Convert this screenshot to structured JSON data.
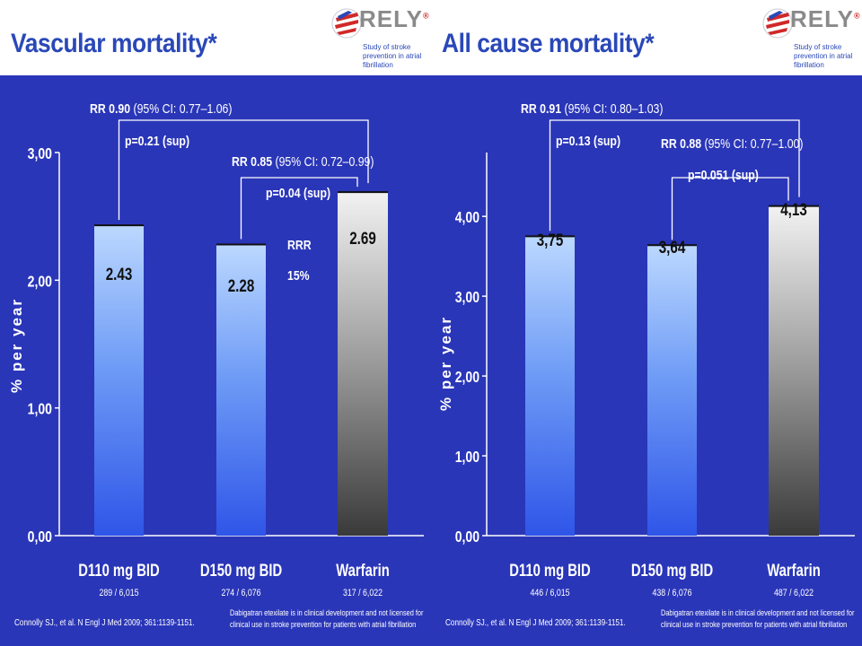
{
  "logo": {
    "text": "RELY",
    "reg": "®",
    "subtitle": "Study of stroke prevention in atrial fibrillation"
  },
  "chart_data": [
    {
      "type": "bar",
      "title": "Vascular mortality*",
      "ylabel": "% per year",
      "ylim": [
        0,
        3
      ],
      "yticks": [
        "0,00",
        "1,00",
        "2,00",
        "3,00"
      ],
      "categories": [
        "D110 mg BID",
        "D150 mg BID",
        "Warfarin"
      ],
      "counts": [
        "289 / 6,015",
        "274 / 6,076",
        "317 / 6,022"
      ],
      "values": [
        2.43,
        2.28,
        2.69
      ],
      "value_labels": [
        "2.43",
        "2.28",
        "2.69"
      ],
      "comparisons": [
        {
          "rr": "RR 0.90",
          "ci": "(95% CI: 0.77–1.06)",
          "p": "p=0.21 (sup)",
          "from": 0,
          "to": 2
        },
        {
          "rr": "RR 0.85",
          "ci": "(95% CI: 0.72–0.99)",
          "p": "p=0.04 (sup)",
          "from": 1,
          "to": 2
        }
      ],
      "annotation": {
        "line1": "RRR",
        "line2": "15%"
      },
      "citation": "Connolly SJ., et al. N Engl J Med 2009; 361:1139-1151.",
      "disclaimer": "Dabigatran etexilate is in clinical development and not licensed for clinical use in stroke prevention for patients with atrial fibrillation"
    },
    {
      "type": "bar",
      "title": "All cause mortality*",
      "ylabel": "% per year",
      "ylim": [
        0,
        4.8
      ],
      "yticks": [
        "0,00",
        "1,00",
        "2,00",
        "3,00",
        "4,00"
      ],
      "categories": [
        "D110 mg BID",
        "D150 mg BID",
        "Warfarin"
      ],
      "counts": [
        "446 / 6,015",
        "438 / 6,076",
        "487 / 6,022"
      ],
      "values": [
        3.75,
        3.64,
        4.13
      ],
      "value_labels": [
        "3,75",
        "3,64",
        "4,13"
      ],
      "comparisons": [
        {
          "rr": "RR 0.91",
          "ci": "(95% CI: 0.80–1.03)",
          "p": "p=0.13 (sup)",
          "from": 0,
          "to": 2
        },
        {
          "rr": "RR 0.88",
          "ci": "(95% CI: 0.77–1.00)",
          "p": "p=0.051 (sup)",
          "from": 1,
          "to": 2
        }
      ],
      "citation": "Connolly SJ., et al. N Engl J Med 2009; 361:1139-1151.",
      "disclaimer": "Dabigatran etexilate is in clinical development and not licensed for clinical use in stroke prevention for patients with atrial fibrillation"
    }
  ]
}
